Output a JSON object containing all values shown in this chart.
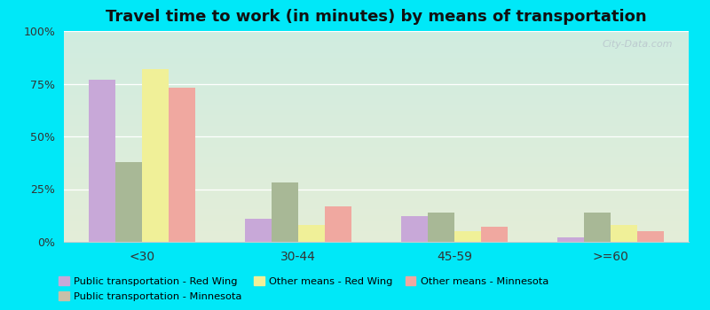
{
  "title": "Travel time to work (in minutes) by means of transportation",
  "categories": [
    "<30",
    "30-44",
    "45-59",
    ">=60"
  ],
  "series": [
    {
      "label": "Public transportation - Red Wing",
      "color": "#c8a8d8",
      "values": [
        77,
        11,
        12,
        2
      ]
    },
    {
      "label": "Public transportation - Minnesota",
      "color": "#a8b896",
      "values": [
        38,
        28,
        14,
        14
      ]
    },
    {
      "label": "Other means - Red Wing",
      "color": "#f0f098",
      "values": [
        82,
        8,
        5,
        8
      ]
    },
    {
      "label": "Other means - Minnesota",
      "color": "#f0a8a0",
      "values": [
        73,
        17,
        7,
        5
      ]
    }
  ],
  "legend_order": [
    0,
    1,
    2,
    3
  ],
  "legend_labels": [
    "Public transportation - Red Wing",
    "Public transportation - Minnesota",
    "Other means - Red Wing",
    "Other means - Minnesota"
  ],
  "legend_colors": [
    "#c8a8d8",
    "#c8c0a8",
    "#f0f098",
    "#f0a8a0"
  ],
  "ylim": [
    0,
    100
  ],
  "yticks": [
    0,
    25,
    50,
    75,
    100
  ],
  "ytick_labels": [
    "0%",
    "25%",
    "50%",
    "75%",
    "100%"
  ],
  "bg_outer": "#00e8f8",
  "title_fontsize": 13,
  "bar_width": 0.17,
  "watermark": "City-Data.com"
}
